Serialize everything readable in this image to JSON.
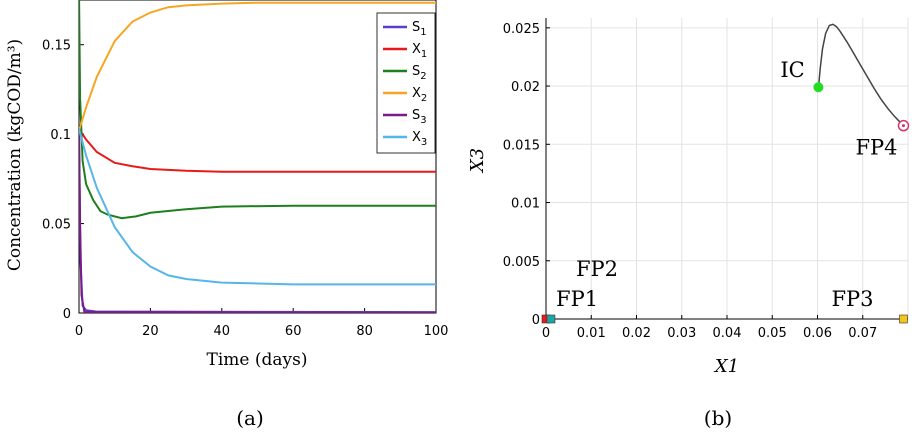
{
  "chart_data": [
    {
      "type": "line",
      "panel_label": "(a)",
      "xlabel": "Time (days)",
      "ylabel": "Concentration (kgCOD/m³)",
      "xlim": [
        0,
        100
      ],
      "ylim": [
        0,
        0.175
      ],
      "xticks": [
        0,
        20,
        40,
        60,
        80,
        100
      ],
      "yticks": [
        0,
        0.05,
        0.1,
        0.15
      ],
      "xtick_labels": [
        "0",
        "20",
        "40",
        "60",
        "80",
        "100"
      ],
      "ytick_labels": [
        "0",
        "0.05",
        "0.1",
        "0.15"
      ],
      "grid": false,
      "legend_position": "top-right",
      "series": [
        {
          "name": "S1",
          "color": "#5b3fc4",
          "x": [
            0,
            0.4,
            1,
            2,
            5,
            100
          ],
          "y": [
            0.102,
            0.03,
            0.004,
            0.0015,
            0.0008,
            0.0005
          ]
        },
        {
          "name": "X1",
          "color": "#e8191b",
          "x": [
            0,
            2,
            5,
            10,
            15,
            20,
            30,
            40,
            60,
            80,
            100
          ],
          "y": [
            0.103,
            0.097,
            0.09,
            0.084,
            0.082,
            0.0805,
            0.0795,
            0.079,
            0.079,
            0.079,
            0.079
          ]
        },
        {
          "name": "S2",
          "color": "#1e7f1e",
          "x": [
            0,
            0.3,
            1,
            2,
            4,
            6,
            8,
            12,
            16,
            20,
            30,
            40,
            60,
            80,
            100
          ],
          "y": [
            0.18,
            0.12,
            0.085,
            0.072,
            0.063,
            0.057,
            0.055,
            0.053,
            0.054,
            0.056,
            0.058,
            0.0595,
            0.06,
            0.06,
            0.06
          ]
        },
        {
          "name": "X2",
          "color": "#f5a623",
          "x": [
            0,
            2,
            5,
            10,
            15,
            20,
            25,
            30,
            40,
            50,
            60,
            80,
            100
          ],
          "y": [
            0.102,
            0.115,
            0.132,
            0.152,
            0.163,
            0.168,
            0.171,
            0.172,
            0.173,
            0.1735,
            0.1735,
            0.1735,
            0.1735
          ]
        },
        {
          "name": "S3",
          "color": "#7b1a8a",
          "x": [
            0,
            0.3,
            0.7,
            1.5,
            100
          ],
          "y": [
            0.103,
            0.05,
            0.01,
            0.0005,
            0.0001
          ]
        },
        {
          "name": "X3",
          "color": "#56b6e8",
          "x": [
            0,
            2,
            5,
            10,
            15,
            20,
            25,
            30,
            40,
            50,
            60,
            80,
            100
          ],
          "y": [
            0.103,
            0.088,
            0.07,
            0.048,
            0.034,
            0.026,
            0.021,
            0.019,
            0.017,
            0.0165,
            0.016,
            0.016,
            0.016
          ]
        }
      ]
    },
    {
      "type": "line",
      "panel_label": "(b)",
      "xlabel": "X1",
      "ylabel": "X3",
      "xlim": [
        0,
        0.08
      ],
      "ylim": [
        0,
        0.0255
      ],
      "xticks": [
        0,
        0.01,
        0.02,
        0.03,
        0.04,
        0.05,
        0.06,
        0.07
      ],
      "yticks": [
        0,
        0.005,
        0.01,
        0.015,
        0.02,
        0.025
      ],
      "xtick_labels": [
        "0",
        "0.01",
        "0.02",
        "0.03",
        "0.04",
        "0.05",
        "0.06",
        "0.07"
      ],
      "ytick_labels": [
        "0",
        "0.005",
        "0.01",
        "0.015",
        "0.02",
        "0.025"
      ],
      "grid": true,
      "series": [
        {
          "color": "#444444",
          "x": [
            0.0602,
            0.0606,
            0.0611,
            0.0618,
            0.0626,
            0.0634,
            0.0642,
            0.065,
            0.0665,
            0.068,
            0.0695,
            0.071,
            0.0725,
            0.074,
            0.0755,
            0.077,
            0.0785,
            0.079
          ],
          "y": [
            0.0198,
            0.0215,
            0.0232,
            0.0245,
            0.0252,
            0.0253,
            0.0251,
            0.0247,
            0.0238,
            0.0228,
            0.0218,
            0.0208,
            0.0198,
            0.0189,
            0.0181,
            0.0174,
            0.0168,
            0.0166
          ]
        }
      ],
      "points": [
        {
          "label": "IC",
          "x": 0.0602,
          "y": 0.0199,
          "color": "#22dd22",
          "shape": "dot"
        },
        {
          "label": "FP4",
          "x": 0.079,
          "y": 0.0166,
          "color": "#d6336c",
          "shape": "circle"
        },
        {
          "label": "FP1",
          "x": 0.0,
          "y": 0.0,
          "color": "#e8191b",
          "shape": "square"
        },
        {
          "label": "FP2",
          "x": 0.0011,
          "y": 0.0,
          "color": "#1aa6a6",
          "shape": "square"
        },
        {
          "label": "FP3",
          "x": 0.079,
          "y": 0.0,
          "color": "#f5c518",
          "shape": "square"
        }
      ]
    }
  ]
}
